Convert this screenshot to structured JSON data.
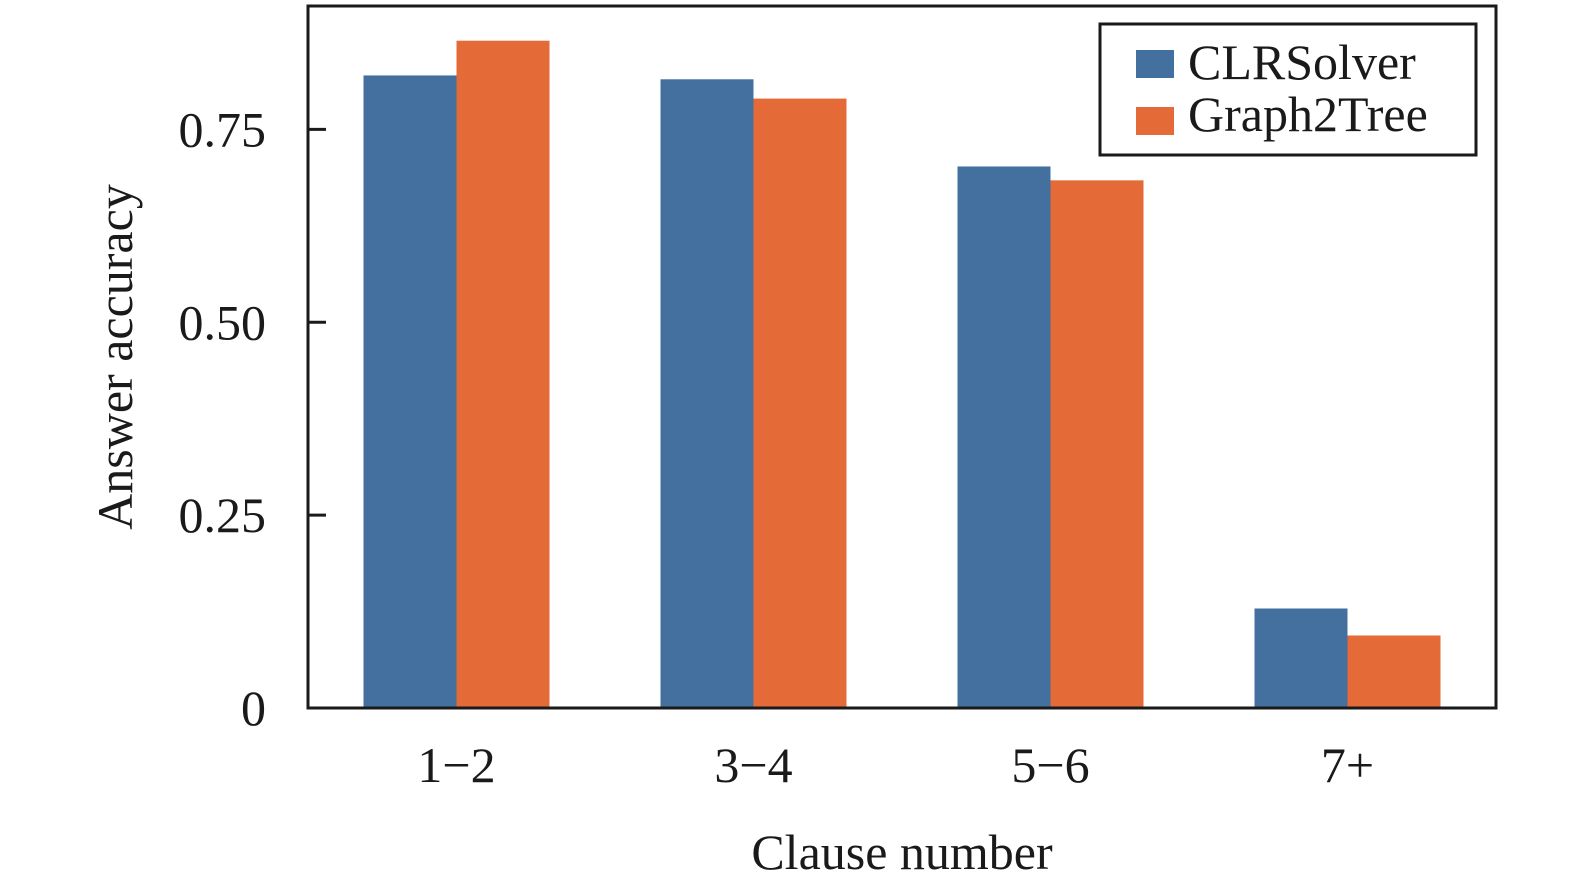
{
  "chart_data": {
    "type": "bar",
    "title": "",
    "xlabel": "Clause number",
    "ylabel": "Answer accuracy",
    "categories": [
      "1−2",
      "3−4",
      "5−6",
      "7+"
    ],
    "series": [
      {
        "name": "CLRSolver",
        "values": [
          0.82,
          0.815,
          0.702,
          0.129
        ],
        "color": "#44709f"
      },
      {
        "name": "Graph2Tree",
        "values": [
          0.865,
          0.79,
          0.684,
          0.094
        ],
        "color": "#e46a37"
      }
    ],
    "ylim": [
      0,
      0.91
    ],
    "yticks": [
      {
        "value": 0,
        "label": "0"
      },
      {
        "value": 0.25,
        "label": "0.25"
      },
      {
        "value": 0.5,
        "label": "0.50"
      },
      {
        "value": 0.75,
        "label": "0.75"
      }
    ],
    "grid": false,
    "legend_position": "top-right"
  }
}
